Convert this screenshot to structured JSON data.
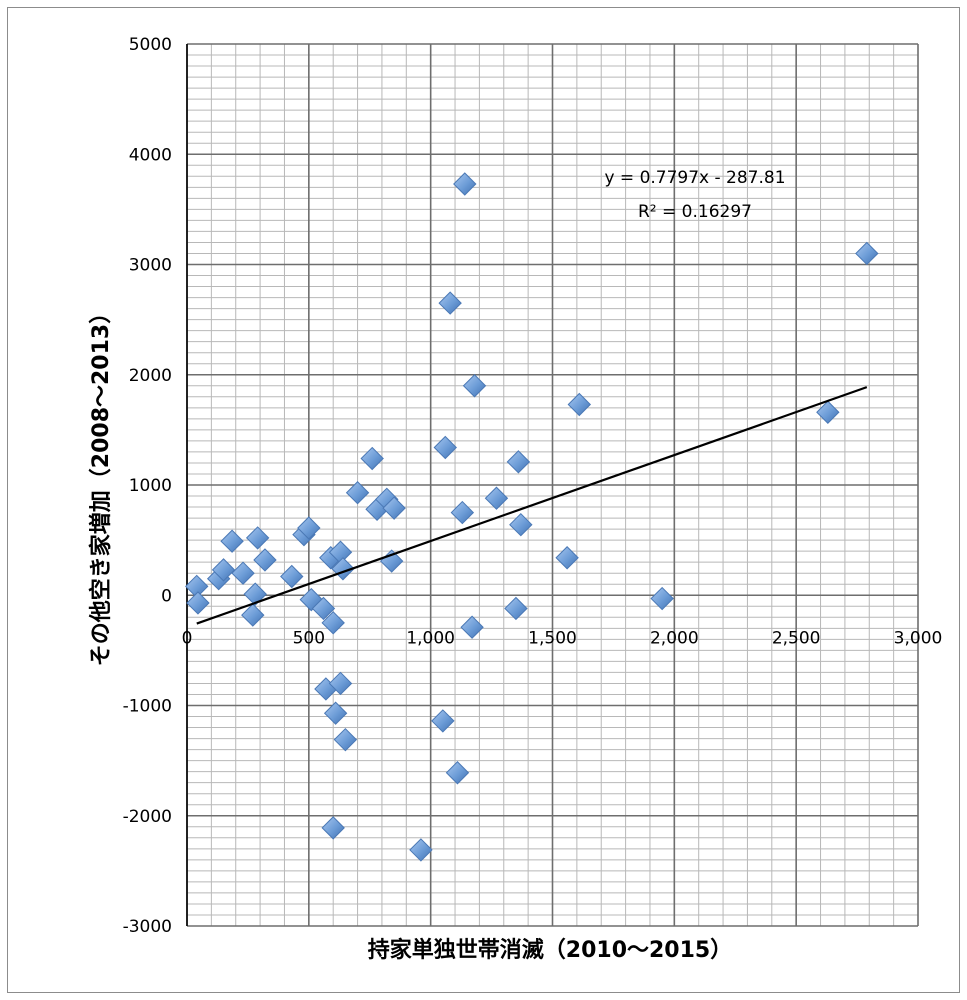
{
  "chart_data": {
    "type": "scatter",
    "title": "",
    "xlabel": "持家単独世帯消滅（2010～2015）",
    "ylabel": "その他空き家増加（2008～2013）",
    "xlim": [
      0,
      3000
    ],
    "ylim": [
      -3000,
      5000
    ],
    "x_major_ticks": [
      0,
      500,
      1000,
      1500,
      2000,
      2500,
      3000
    ],
    "x_tick_labels": [
      "0",
      "500",
      "1,000",
      "1,500",
      "2,000",
      "2,500",
      "3,000"
    ],
    "y_major_ticks": [
      -3000,
      -2000,
      -1000,
      0,
      1000,
      2000,
      3000,
      4000,
      5000
    ],
    "y_tick_labels": [
      "-3000",
      "-2000",
      "-1000",
      "0",
      "1000",
      "2000",
      "3000",
      "4000",
      "5000"
    ],
    "grid": true,
    "marker_color": "#6b9bd6",
    "series": [
      {
        "points": [
          [
            40,
            80
          ],
          [
            45,
            -70
          ],
          [
            130,
            150
          ],
          [
            150,
            230
          ],
          [
            185,
            490
          ],
          [
            230,
            200
          ],
          [
            270,
            -180
          ],
          [
            290,
            520
          ],
          [
            280,
            10
          ],
          [
            320,
            320
          ],
          [
            430,
            170
          ],
          [
            480,
            550
          ],
          [
            500,
            610
          ],
          [
            510,
            -40
          ],
          [
            560,
            -120
          ],
          [
            570,
            -850
          ],
          [
            590,
            340
          ],
          [
            600,
            -250
          ],
          [
            610,
            -1070
          ],
          [
            600,
            -2110
          ],
          [
            630,
            -800
          ],
          [
            630,
            390
          ],
          [
            640,
            240
          ],
          [
            650,
            -1310
          ],
          [
            700,
            930
          ],
          [
            760,
            1240
          ],
          [
            780,
            780
          ],
          [
            820,
            870
          ],
          [
            840,
            310
          ],
          [
            850,
            790
          ],
          [
            960,
            -2310
          ],
          [
            1050,
            -1140
          ],
          [
            1060,
            1340
          ],
          [
            1080,
            2650
          ],
          [
            1110,
            -1610
          ],
          [
            1130,
            750
          ],
          [
            1140,
            3730
          ],
          [
            1170,
            -290
          ],
          [
            1180,
            1900
          ],
          [
            1270,
            880
          ],
          [
            1350,
            -120
          ],
          [
            1360,
            1210
          ],
          [
            1370,
            640
          ],
          [
            1560,
            340
          ],
          [
            1610,
            1730
          ],
          [
            1950,
            -30
          ],
          [
            2630,
            1660
          ],
          [
            2790,
            3100
          ]
        ]
      }
    ],
    "trendline": {
      "slope": 0.7797,
      "intercept": -287.81,
      "x_range": [
        40,
        2790
      ],
      "color": "#000000"
    },
    "annotations": {
      "equation": "y = 0.7797x - 287.81",
      "r_squared": "R² = 0.16297"
    }
  }
}
